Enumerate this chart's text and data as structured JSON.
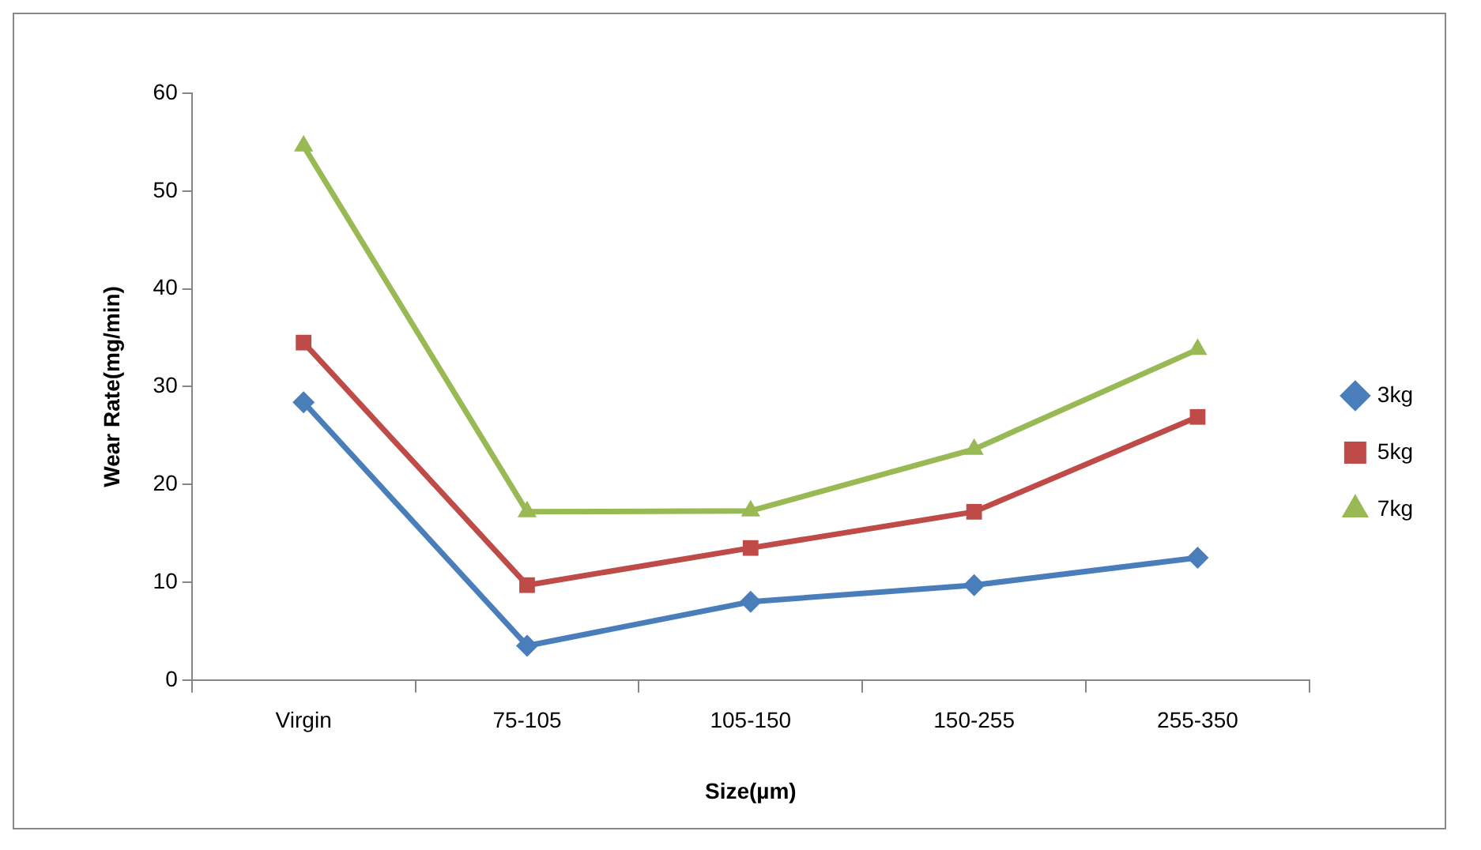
{
  "chart_data": {
    "type": "line",
    "xlabel": "Size(µm)",
    "ylabel": "Wear Rate(mg/min)",
    "categories": [
      "Virgin",
      "75-105",
      "105-150",
      "150-255",
      "255-350"
    ],
    "series": [
      {
        "name": "3kg",
        "color": "#4a7ebb",
        "marker": "diamond",
        "values": [
          28.4,
          3.5,
          8.0,
          9.7,
          12.5
        ]
      },
      {
        "name": "5kg",
        "color": "#be4b48",
        "marker": "square",
        "values": [
          34.5,
          9.7,
          13.5,
          17.2,
          26.9
        ]
      },
      {
        "name": "7kg",
        "color": "#98b954",
        "marker": "triangle",
        "values": [
          54.6,
          17.2,
          17.3,
          23.6,
          33.8
        ]
      }
    ],
    "ylim": [
      0,
      60
    ],
    "yticks": [
      0,
      10,
      20,
      30,
      40,
      50,
      60
    ],
    "grid": false,
    "legend": "right",
    "line_style": "solid"
  }
}
